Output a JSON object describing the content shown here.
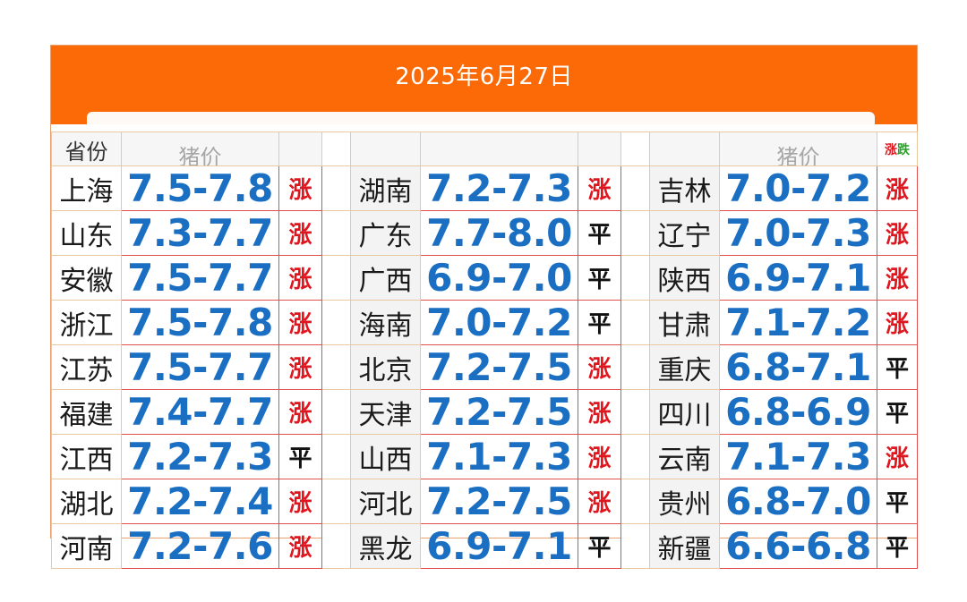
{
  "header": {
    "date": "2025年6月27日",
    "col_province": "省份",
    "col_price": "猪价",
    "col_trend_rise": "涨",
    "col_trend_fall": "跌"
  },
  "columns": [
    {
      "rows": [
        {
          "province": "上海",
          "price": "7.5-7.8",
          "trend": "涨"
        },
        {
          "province": "山东",
          "price": "7.3-7.7",
          "trend": "涨"
        },
        {
          "province": "安徽",
          "price": "7.5-7.7",
          "trend": "涨"
        },
        {
          "province": "浙江",
          "price": "7.5-7.8",
          "trend": "涨"
        },
        {
          "province": "江苏",
          "price": "7.5-7.7",
          "trend": "涨"
        },
        {
          "province": "福建",
          "price": "7.4-7.7",
          "trend": "涨"
        },
        {
          "province": "江西",
          "price": "7.2-7.3",
          "trend": "平"
        },
        {
          "province": "湖北",
          "price": "7.2-7.4",
          "trend": "涨"
        },
        {
          "province": "河南",
          "price": "7.2-7.6",
          "trend": "涨"
        }
      ]
    },
    {
      "rows": [
        {
          "province": "湖南",
          "price": "7.2-7.3",
          "trend": "涨"
        },
        {
          "province": "广东",
          "price": "7.7-8.0",
          "trend": "平"
        },
        {
          "province": "广西",
          "price": "6.9-7.0",
          "trend": "平"
        },
        {
          "province": "海南",
          "price": "7.0-7.2",
          "trend": "平"
        },
        {
          "province": "北京",
          "price": "7.2-7.5",
          "trend": "涨"
        },
        {
          "province": "天津",
          "price": "7.2-7.5",
          "trend": "涨"
        },
        {
          "province": "山西",
          "price": "7.1-7.3",
          "trend": "涨"
        },
        {
          "province": "河北",
          "price": "7.2-7.5",
          "trend": "涨"
        },
        {
          "province": "黑龙",
          "price": "6.9-7.1",
          "trend": "平"
        }
      ]
    },
    {
      "rows": [
        {
          "province": "吉林",
          "price": "7.0-7.2",
          "trend": "涨"
        },
        {
          "province": "辽宁",
          "price": "7.0-7.3",
          "trend": "涨"
        },
        {
          "province": "陕西",
          "price": "6.9-7.1",
          "trend": "涨"
        },
        {
          "province": "甘肃",
          "price": "7.1-7.2",
          "trend": "涨"
        },
        {
          "province": "重庆",
          "price": "6.8-7.1",
          "trend": "平"
        },
        {
          "province": "四川",
          "price": "6.8-6.9",
          "trend": "平"
        },
        {
          "province": "云南",
          "price": "7.1-7.3",
          "trend": "涨"
        },
        {
          "province": "贵州",
          "price": "6.8-7.0",
          "trend": "平"
        },
        {
          "province": "新疆",
          "price": "6.6-6.8",
          "trend": "平"
        }
      ]
    }
  ],
  "colors": {
    "banner": "#fb6a06",
    "price": "#1b6fc3",
    "rise": "#e0161e",
    "flat": "#111111",
    "fall": "#2aa12a"
  }
}
